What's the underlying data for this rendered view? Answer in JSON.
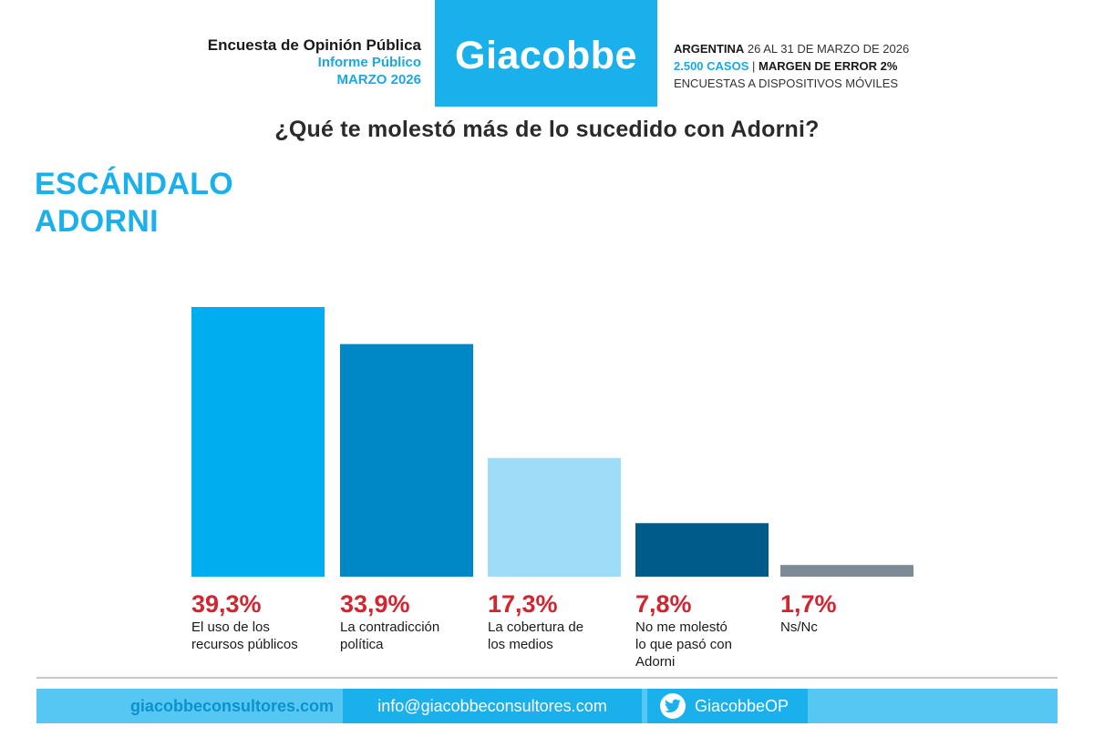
{
  "header": {
    "left_line1": "Encuesta de Opinión Pública",
    "left_line2": "Informe Público",
    "left_line3": "MARZO 2026",
    "brand": "Giacobbe",
    "country": "ARGENTINA",
    "dates": "26 AL 31 DE MARZO DE 2026",
    "cases": "2.500 CASOS",
    "separator": "|",
    "margin": "MARGEN DE ERROR 2%",
    "method": "ENCUESTAS A DISPOSITIVOS MÓVILES"
  },
  "question": "¿Qué te molestó más de lo sucedido con Adorni?",
  "section_title": {
    "line1": "ESCÁNDALO",
    "line2": "ADORNI"
  },
  "chart_data": {
    "type": "bar",
    "title": "¿Qué te molestó más de lo sucedido con Adorni?",
    "unit": "%",
    "categories": [
      [
        "El uso de los",
        "recursos públicos"
      ],
      [
        "La contradicción",
        "política"
      ],
      [
        "La cobertura de",
        "los medios"
      ],
      [
        "No me molestó",
        "lo que pasó con",
        "Adorni"
      ],
      [
        "Ns/Nc"
      ]
    ],
    "values": [
      39.3,
      33.9,
      17.3,
      7.8,
      1.7
    ],
    "value_labels": [
      "39,3%",
      "33,9%",
      "17,3%",
      "7,8%",
      "1,7%"
    ],
    "colors": [
      "#00aeef",
      "#0087c6",
      "#9fdcf7",
      "#005b8a",
      "#7d8b96"
    ],
    "label_color": "#d32430",
    "ylim": [
      0,
      39.3
    ],
    "xlabel": "",
    "ylabel": "",
    "grid": false,
    "legend": "none"
  },
  "footer": {
    "website": "giacobbeconsultores.com",
    "email": "info@giacobbeconsultores.com",
    "twitter": "GiacobbeOP",
    "twitter_icon": "twitter-icon"
  },
  "colors": {
    "brand": "#1ab0ec",
    "footer_bg": "#56c7f3",
    "accent_red": "#d32430"
  }
}
